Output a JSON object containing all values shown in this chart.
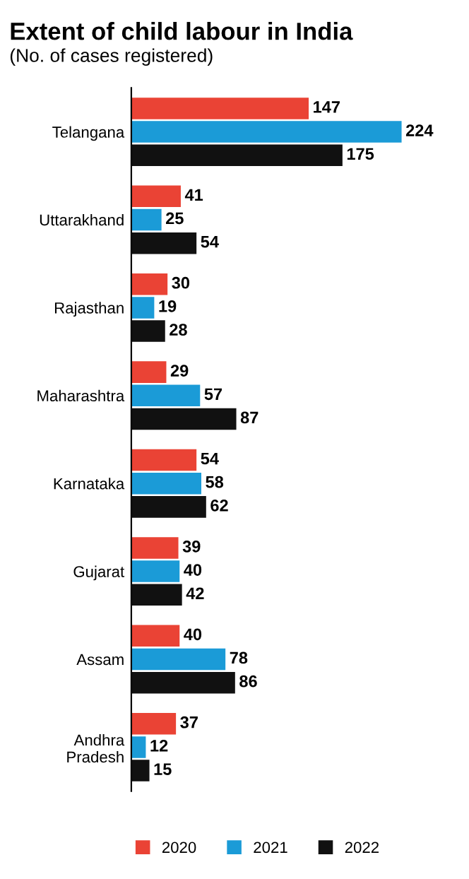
{
  "chart_data": {
    "type": "bar",
    "orientation": "horizontal",
    "title": "Extent of child labour in India",
    "subtitle": "(No. of cases registered)",
    "categories": [
      "Telangana",
      "Uttarakhand",
      "Rajasthan",
      "Maharashtra",
      "Karnataka",
      "Gujarat",
      "Assam",
      "Andhra\nPradesh"
    ],
    "series": [
      {
        "name": "2020",
        "color": "#ea4335",
        "values": [
          147,
          41,
          30,
          29,
          54,
          39,
          40,
          37
        ]
      },
      {
        "name": "2021",
        "color": "#1b9bd7",
        "values": [
          224,
          25,
          19,
          57,
          58,
          40,
          78,
          12
        ]
      },
      {
        "name": "2022",
        "color": "#111111",
        "values": [
          175,
          54,
          28,
          87,
          62,
          42,
          86,
          15
        ]
      }
    ],
    "data_labels": true,
    "legend": "bottom",
    "grid": false
  }
}
